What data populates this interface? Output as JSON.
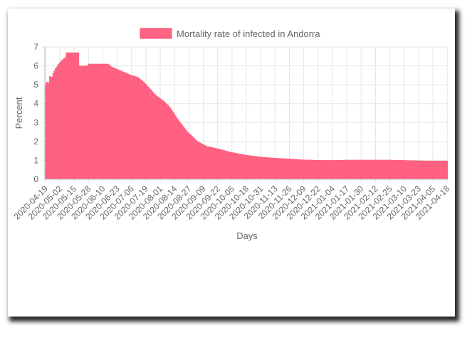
{
  "chart_data": {
    "type": "bar",
    "title": "",
    "xlabel": "Days",
    "ylabel": "Percent",
    "ylim": [
      0,
      7
    ],
    "yticks": [
      "0",
      "1",
      "2",
      "3",
      "4",
      "5",
      "6",
      "7"
    ],
    "grid": true,
    "legend_position": "top",
    "bar_color": "#ff6384",
    "bar_border_color": "#ff4d73",
    "x_start": "2020-04-19",
    "x_end": "2021-04-18",
    "xtick_labels": [
      "2020-04-19",
      "2020-05-02",
      "2020-05-15",
      "2020-05-28",
      "2020-06-10",
      "2020-06-23",
      "2020-07-06",
      "2020-07-19",
      "2020-08-01",
      "2020-08-14",
      "2020-08-27",
      "2020-09-09",
      "2020-09-22",
      "2020-10-05",
      "2020-10-18",
      "2020-10-31",
      "2020-11-13",
      "2020-11-26",
      "2020-12-09",
      "2020-12-22",
      "2021-01-04",
      "2021-01-17",
      "2021-01-30",
      "2021-02-12",
      "2021-02-25",
      "2021-03-10",
      "2021-03-23",
      "2021-04-05",
      "2021-04-18"
    ],
    "series": [
      {
        "name": "Mortality rate of infected in Andorra",
        "keypoints": [
          [
            "2020-04-19",
            5.0
          ],
          [
            "2020-04-20",
            5.15
          ],
          [
            "2020-04-22",
            5.1
          ],
          [
            "2020-04-23",
            5.45
          ],
          [
            "2020-04-25",
            5.4
          ],
          [
            "2020-04-26",
            5.6
          ],
          [
            "2020-04-28",
            5.85
          ],
          [
            "2020-05-01",
            6.1
          ],
          [
            "2020-05-04",
            6.3
          ],
          [
            "2020-05-07",
            6.45
          ],
          [
            "2020-05-08",
            6.7
          ],
          [
            "2020-05-19",
            6.7
          ],
          [
            "2020-05-20",
            6.0
          ],
          [
            "2020-05-27",
            6.0
          ],
          [
            "2020-05-28",
            6.1
          ],
          [
            "2020-06-15",
            6.1
          ],
          [
            "2020-06-18",
            5.95
          ],
          [
            "2020-06-24",
            5.8
          ],
          [
            "2020-07-06",
            5.5
          ],
          [
            "2020-07-12",
            5.4
          ],
          [
            "2020-07-18",
            5.1
          ],
          [
            "2020-07-28",
            4.45
          ],
          [
            "2020-08-05",
            4.1
          ],
          [
            "2020-08-10",
            3.8
          ],
          [
            "2020-08-18",
            3.1
          ],
          [
            "2020-08-26",
            2.5
          ],
          [
            "2020-09-04",
            2.0
          ],
          [
            "2020-09-12",
            1.75
          ],
          [
            "2020-09-22",
            1.62
          ],
          [
            "2020-10-05",
            1.42
          ],
          [
            "2020-10-18",
            1.28
          ],
          [
            "2020-10-31",
            1.18
          ],
          [
            "2020-11-13",
            1.12
          ],
          [
            "2020-11-26",
            1.08
          ],
          [
            "2020-12-09",
            1.03
          ],
          [
            "2020-12-22",
            1.01
          ],
          [
            "2021-01-04",
            1.0
          ],
          [
            "2021-01-17",
            1.02
          ],
          [
            "2021-01-30",
            1.02
          ],
          [
            "2021-02-12",
            1.02
          ],
          [
            "2021-02-25",
            1.02
          ],
          [
            "2021-03-10",
            1.0
          ],
          [
            "2021-03-23",
            0.98
          ],
          [
            "2021-04-05",
            0.97
          ],
          [
            "2021-04-18",
            0.97
          ]
        ]
      }
    ]
  }
}
